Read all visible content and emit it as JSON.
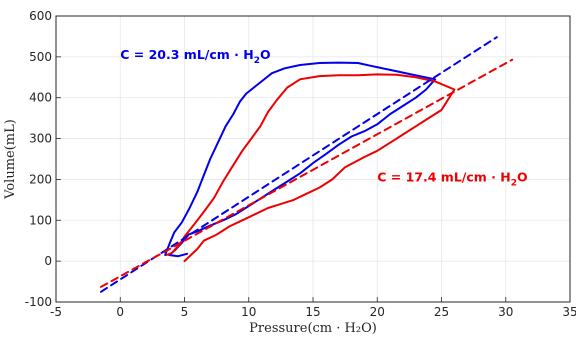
{
  "chart_data": {
    "type": "line",
    "xlabel": "Pressure(cm · H₂O)",
    "ylabel": "Volume(mL)",
    "xlim": [
      -5,
      35
    ],
    "ylim": [
      -100,
      600
    ],
    "xticks": [
      -5,
      0,
      5,
      10,
      15,
      20,
      25,
      30,
      35
    ],
    "yticks": [
      -100,
      0,
      100,
      200,
      300,
      400,
      500,
      600
    ],
    "grid": true,
    "annotations": [
      {
        "text": "C = 20.3 mL/cm · H",
        "sub": "2",
        "tail": "O",
        "color": "#0000ee",
        "x": 0,
        "y": 495
      },
      {
        "text": "C = 17.4 mL/cm · H",
        "sub": "2",
        "tail": "O",
        "color": "#ee0000",
        "x": 20,
        "y": 195
      }
    ],
    "series": [
      {
        "color": "#0000ee",
        "style": "solid",
        "points": [
          [
            3.5,
            15
          ],
          [
            3.8,
            40
          ],
          [
            4.2,
            70
          ],
          [
            4.8,
            95
          ],
          [
            5.4,
            130
          ],
          [
            6.0,
            170
          ],
          [
            6.5,
            210
          ],
          [
            7.0,
            250
          ],
          [
            7.6,
            290
          ],
          [
            8.2,
            330
          ],
          [
            8.8,
            360
          ],
          [
            9.3,
            390
          ],
          [
            9.8,
            410
          ],
          [
            10.4,
            425
          ],
          [
            11.0,
            440
          ],
          [
            11.8,
            460
          ],
          [
            12.8,
            472
          ],
          [
            14.0,
            480
          ],
          [
            15.5,
            485
          ],
          [
            17.0,
            486
          ],
          [
            18.5,
            485
          ],
          [
            19.5,
            478
          ],
          [
            21.0,
            468
          ],
          [
            22.5,
            458
          ],
          [
            24.5,
            445
          ],
          [
            23.8,
            420
          ],
          [
            23.0,
            400
          ],
          [
            22.0,
            380
          ],
          [
            21.0,
            360
          ],
          [
            20.0,
            335
          ],
          [
            19.0,
            318
          ],
          [
            18.0,
            305
          ],
          [
            17.0,
            285
          ],
          [
            16.0,
            262
          ],
          [
            15.0,
            240
          ],
          [
            14.0,
            215
          ],
          [
            13.0,
            195
          ],
          [
            12.0,
            175
          ],
          [
            11.0,
            155
          ],
          [
            10.0,
            135
          ],
          [
            9.0,
            115
          ],
          [
            8.0,
            100
          ],
          [
            7.0,
            87
          ],
          [
            6.0,
            73
          ],
          [
            5.3,
            65
          ],
          [
            4.8,
            45
          ],
          [
            4.2,
            25
          ],
          [
            3.8,
            15
          ],
          [
            4.5,
            12
          ],
          [
            5.2,
            18
          ]
        ]
      },
      {
        "color": "#ee0000",
        "style": "solid",
        "points": [
          [
            3.6,
            15
          ],
          [
            4.0,
            20
          ],
          [
            4.6,
            40
          ],
          [
            5.0,
            60
          ],
          [
            5.5,
            80
          ],
          [
            6.0,
            100
          ],
          [
            6.6,
            125
          ],
          [
            7.3,
            155
          ],
          [
            8.0,
            195
          ],
          [
            8.7,
            230
          ],
          [
            9.5,
            270
          ],
          [
            10.2,
            300
          ],
          [
            10.9,
            330
          ],
          [
            11.5,
            365
          ],
          [
            12.2,
            395
          ],
          [
            13.0,
            425
          ],
          [
            14.0,
            445
          ],
          [
            15.5,
            453
          ],
          [
            17.0,
            455
          ],
          [
            18.5,
            455
          ],
          [
            20.0,
            457
          ],
          [
            21.5,
            456
          ],
          [
            23.0,
            450
          ],
          [
            24.5,
            440
          ],
          [
            26.0,
            420
          ],
          [
            25.5,
            395
          ],
          [
            25.0,
            370
          ],
          [
            24.0,
            350
          ],
          [
            23.0,
            330
          ],
          [
            22.0,
            310
          ],
          [
            21.0,
            290
          ],
          [
            20.0,
            270
          ],
          [
            19.0,
            255
          ],
          [
            17.5,
            230
          ],
          [
            16.5,
            200
          ],
          [
            15.5,
            180
          ],
          [
            14.5,
            165
          ],
          [
            13.5,
            150
          ],
          [
            12.5,
            140
          ],
          [
            11.5,
            130
          ],
          [
            10.5,
            115
          ],
          [
            9.5,
            100
          ],
          [
            8.5,
            85
          ],
          [
            7.5,
            65
          ],
          [
            6.5,
            50
          ],
          [
            6.0,
            30
          ],
          [
            5.5,
            15
          ],
          [
            5.0,
            0
          ]
        ]
      },
      {
        "color": "#0000ee",
        "style": "dashed",
        "points": [
          [
            -1.5,
            -75
          ],
          [
            29.3,
            548
          ]
        ]
      },
      {
        "color": "#ee0000",
        "style": "dashed",
        "points": [
          [
            -1.5,
            -63
          ],
          [
            30.5,
            493
          ]
        ]
      }
    ]
  }
}
